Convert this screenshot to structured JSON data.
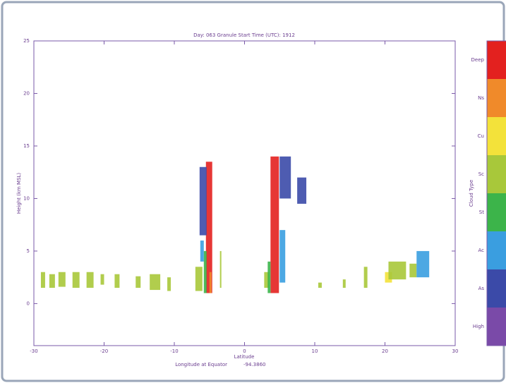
{
  "chart_data": {
    "type": "curtain",
    "title": "Day: 063 Granule Start Time (UTC): 1912",
    "x_label": "Latitude",
    "x_sublabel": "Longitude at Equator",
    "x_subvalue": "-94.3860",
    "y_label": "Height (km MSL)",
    "colorbar_label": "Cloud Type",
    "xlim": [
      -30,
      30
    ],
    "xticks": [
      -30,
      -20,
      -10,
      0,
      10,
      20,
      30
    ],
    "ylim": [
      -4,
      25
    ],
    "yticks": [
      0,
      5,
      10,
      15,
      20,
      25
    ],
    "series": [
      {
        "name": "Deep",
        "color": "#e3211f",
        "segments": [
          {
            "lat": [
              -5.5,
              -4.6
            ],
            "height": [
              1,
              13.5
            ]
          },
          {
            "lat": [
              3.7,
              4.9
            ],
            "height": [
              1,
              14
            ]
          }
        ]
      },
      {
        "name": "Ns",
        "color": "#f08a2a",
        "segments": [
          {
            "lat": [
              -5.0,
              -4.7
            ],
            "height": [
              1,
              3
            ]
          }
        ]
      },
      {
        "name": "Cu",
        "color": "#f3e23a",
        "segments": [
          {
            "lat": [
              20,
              21
            ],
            "height": [
              2,
              3
            ]
          }
        ]
      },
      {
        "name": "Sc",
        "color": "#a8c83a",
        "segments": [
          {
            "lat": [
              -29,
              -28.4
            ],
            "height": [
              1.5,
              3
            ]
          },
          {
            "lat": [
              -27.8,
              -27
            ],
            "height": [
              1.5,
              2.8
            ]
          },
          {
            "lat": [
              -26.5,
              -25.5
            ],
            "height": [
              1.6,
              3
            ]
          },
          {
            "lat": [
              -24.5,
              -23.5
            ],
            "height": [
              1.5,
              3
            ]
          },
          {
            "lat": [
              -22.5,
              -21.5
            ],
            "height": [
              1.5,
              3
            ]
          },
          {
            "lat": [
              -20.5,
              -20
            ],
            "height": [
              1.8,
              2.8
            ]
          },
          {
            "lat": [
              -18.5,
              -17.8
            ],
            "height": [
              1.5,
              2.8
            ]
          },
          {
            "lat": [
              -15.5,
              -14.8
            ],
            "height": [
              1.5,
              2.6
            ]
          },
          {
            "lat": [
              -13.5,
              -12
            ],
            "height": [
              1.3,
              2.8
            ]
          },
          {
            "lat": [
              -11,
              -10.5
            ],
            "height": [
              1.2,
              2.5
            ]
          },
          {
            "lat": [
              -7,
              -6
            ],
            "height": [
              1.2,
              3.5
            ]
          },
          {
            "lat": [
              -3.5,
              -3.3
            ],
            "height": [
              1.5,
              5
            ]
          },
          {
            "lat": [
              2.8,
              3.5
            ],
            "height": [
              1.5,
              3
            ]
          },
          {
            "lat": [
              10.5,
              11
            ],
            "height": [
              1.5,
              2
            ]
          },
          {
            "lat": [
              14,
              14.4
            ],
            "height": [
              1.5,
              2.3
            ]
          },
          {
            "lat": [
              17,
              17.5
            ],
            "height": [
              1.5,
              3.5
            ]
          },
          {
            "lat": [
              20.5,
              23
            ],
            "height": [
              2.3,
              4
            ]
          },
          {
            "lat": [
              23.5,
              24.5
            ],
            "height": [
              2.5,
              3.8
            ]
          }
        ]
      },
      {
        "name": "St",
        "color": "#3cb44a",
        "segments": [
          {
            "lat": [
              -5.8,
              -5.4
            ],
            "height": [
              1,
              5
            ]
          },
          {
            "lat": [
              3.3,
              3.7
            ],
            "height": [
              1,
              4
            ]
          }
        ]
      },
      {
        "name": "Ac",
        "color": "#3a9ee0",
        "segments": [
          {
            "lat": [
              -6.3,
              -5.8
            ],
            "height": [
              4,
              6
            ]
          },
          {
            "lat": [
              5,
              5.8
            ],
            "height": [
              2,
              7
            ]
          },
          {
            "lat": [
              24.5,
              26.3
            ],
            "height": [
              2.5,
              5
            ]
          }
        ]
      },
      {
        "name": "As",
        "color": "#3b4aa8",
        "segments": [
          {
            "lat": [
              -6.4,
              -5.4
            ],
            "height": [
              6.5,
              13
            ]
          },
          {
            "lat": [
              5,
              6.6
            ],
            "height": [
              10,
              14
            ]
          },
          {
            "lat": [
              7.5,
              8.8
            ],
            "height": [
              9.5,
              12
            ]
          }
        ]
      },
      {
        "name": "High",
        "color": "#7a4aa8",
        "segments": []
      }
    ]
  }
}
